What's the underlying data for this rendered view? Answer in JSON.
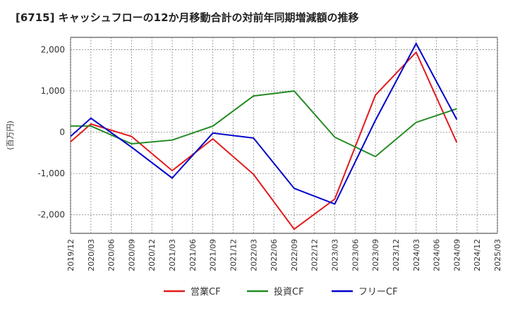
{
  "chart_data": {
    "type": "line",
    "title": "[6715]  キャッシュフローの12か月移動合計の対前年同期増減額の推移",
    "ylabel": "(百万円)",
    "xlabel": "",
    "ylim": [
      -2450,
      2300
    ],
    "yticks": [
      2000,
      1000,
      0,
      -1000,
      -2000
    ],
    "ytick_labels": [
      "2,000",
      "1,000",
      "0",
      "-1,000",
      "-2,000"
    ],
    "grid": true,
    "legend_position": "bottom-center",
    "x": [
      "2019/12",
      "2020/03",
      "2020/06",
      "2020/09",
      "2020/12",
      "2021/03",
      "2021/06",
      "2021/09",
      "2021/12",
      "2022/03",
      "2022/06",
      "2022/09",
      "2022/12",
      "2023/03",
      "2023/06",
      "2023/09",
      "2023/12",
      "2024/03",
      "2024/06",
      "2024/09",
      "2024/12",
      "2025/03"
    ],
    "series": [
      {
        "name": "営業CF",
        "color": "#e31a1c",
        "values": [
          -230,
          200,
          null,
          -100,
          null,
          -930,
          null,
          -160,
          null,
          -1020,
          null,
          -2350,
          null,
          -1620,
          null,
          900,
          null,
          1940,
          null,
          -250,
          null,
          null
        ]
      },
      {
        "name": "投資CF",
        "color": "#228b22",
        "values": [
          150,
          150,
          null,
          -280,
          null,
          -190,
          null,
          150,
          null,
          880,
          null,
          1000,
          null,
          -120,
          null,
          -590,
          null,
          240,
          null,
          570,
          null,
          null
        ]
      },
      {
        "name": "フリーCF",
        "color": "#0000cc",
        "values": [
          -100,
          340,
          null,
          -360,
          null,
          -1110,
          null,
          -20,
          null,
          -140,
          null,
          -1360,
          null,
          -1740,
          null,
          290,
          null,
          2150,
          null,
          310,
          null,
          null
        ]
      }
    ]
  }
}
